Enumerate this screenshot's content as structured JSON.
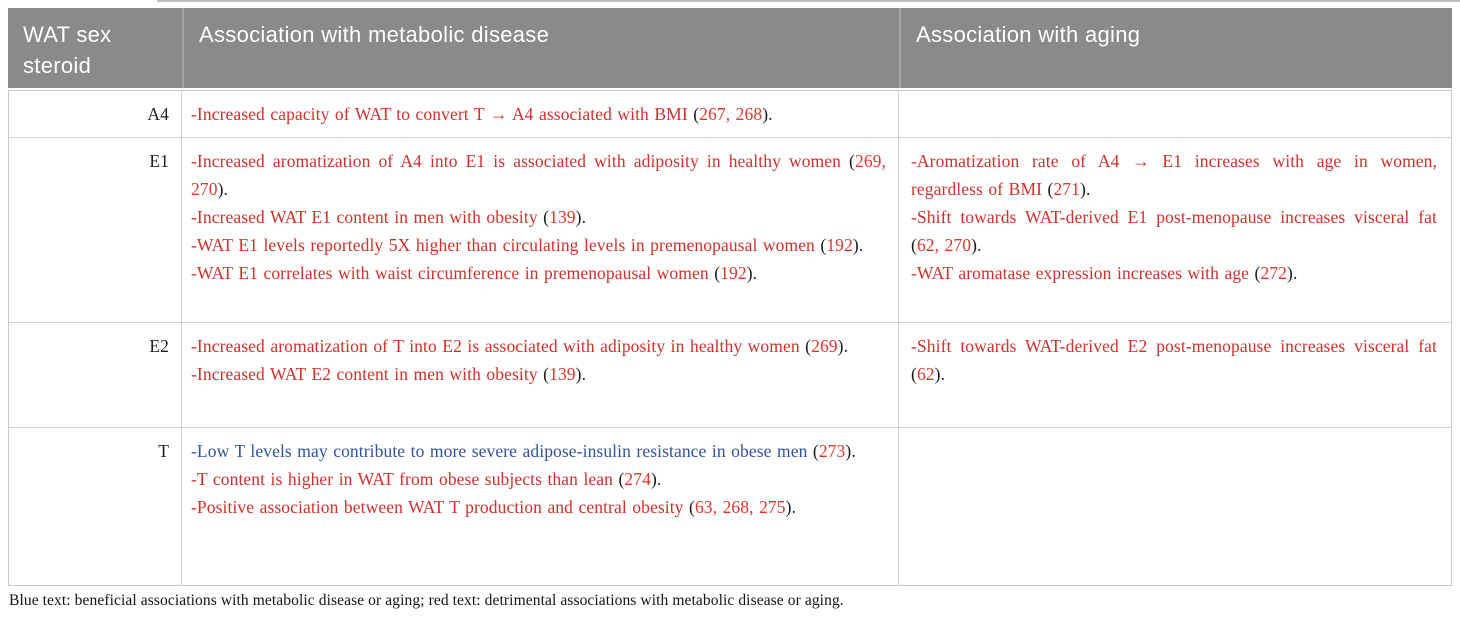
{
  "header": {
    "columns": [
      "WAT sex steroid",
      "Association with metabolic disease",
      "Association with aging"
    ]
  },
  "colors": {
    "red": "#d3302c",
    "blue": "#33519e",
    "ref": "#e0352b",
    "dark": "#1a1a1a",
    "header_bg": "#8a8a8a",
    "header_text": "#ffffff"
  },
  "rows": [
    {
      "label": "A4",
      "metabolic": [
        [
          [
            "-Increased capacity of WAT to convert T → A4 associated with BMI ",
            "red"
          ],
          [
            "(",
            "dark"
          ],
          [
            "267, 268",
            "ref"
          ],
          [
            ").",
            "dark"
          ]
        ]
      ],
      "aging": []
    },
    {
      "label": "E1",
      "metabolic": [
        [
          [
            "-Increased aromatization of A4 into E1 is associated with adiposity in healthy women ",
            "red"
          ],
          [
            "(",
            "dark"
          ],
          [
            "269, 270",
            "ref"
          ],
          [
            ").",
            "dark"
          ]
        ],
        [
          [
            "-Increased WAT E1 content in men with obesity ",
            "red"
          ],
          [
            "(",
            "dark"
          ],
          [
            "139",
            "ref"
          ],
          [
            ").",
            "dark"
          ]
        ],
        [
          [
            "-WAT E1 levels reportedly 5X higher than circulating levels in premenopausal women ",
            "red"
          ],
          [
            "(",
            "dark"
          ],
          [
            "192",
            "ref"
          ],
          [
            ").",
            "dark"
          ]
        ],
        [
          [
            "-WAT E1 correlates with waist circumference in premenopausal women ",
            "red"
          ],
          [
            "(",
            "dark"
          ],
          [
            "192",
            "ref"
          ],
          [
            ").",
            "dark"
          ]
        ]
      ],
      "aging": [
        [
          [
            "-Aromatization rate of A4 → E1 increases with age in women, regardless of BMI ",
            "red"
          ],
          [
            "(",
            "dark"
          ],
          [
            "271",
            "ref"
          ],
          [
            ").",
            "dark"
          ]
        ],
        [
          [
            "-Shift towards WAT-derived E1 post-menopause increases visceral fat ",
            "red"
          ],
          [
            "(",
            "dark"
          ],
          [
            "62, 270",
            "ref"
          ],
          [
            ").",
            "dark"
          ]
        ],
        [
          [
            "-WAT aromatase expression increases with age ",
            "red"
          ],
          [
            "(",
            "dark"
          ],
          [
            "272",
            "ref"
          ],
          [
            ").",
            "dark"
          ]
        ]
      ]
    },
    {
      "label": "E2",
      "metabolic": [
        [
          [
            "-Increased aromatization of T into E2 is associated with adiposity in healthy women ",
            "red"
          ],
          [
            "(",
            "dark"
          ],
          [
            "269",
            "ref"
          ],
          [
            ").",
            "dark"
          ]
        ],
        [
          [
            "-Increased WAT E2 content in men with obesity ",
            "red"
          ],
          [
            "(",
            "dark"
          ],
          [
            "139",
            "ref"
          ],
          [
            ").",
            "dark"
          ]
        ]
      ],
      "aging": [
        [
          [
            "-Shift towards WAT-derived E2 post-menopause increases visceral fat ",
            "red"
          ],
          [
            "(",
            "dark"
          ],
          [
            "62",
            "ref"
          ],
          [
            ").",
            "dark"
          ]
        ]
      ]
    },
    {
      "label": "T",
      "metabolic": [
        [
          [
            "-Low T levels may contribute to more severe adipose-insulin resistance in obese men ",
            "blue"
          ],
          [
            "(",
            "dark"
          ],
          [
            "273",
            "ref"
          ],
          [
            ").",
            "dark"
          ]
        ],
        [
          [
            "-T content is higher in WAT from obese subjects than lean ",
            "red"
          ],
          [
            "(",
            "dark"
          ],
          [
            "274",
            "ref"
          ],
          [
            ").",
            "dark"
          ]
        ],
        [
          [
            "-Positive association between WAT T production and central obesity ",
            "red"
          ],
          [
            "(",
            "dark"
          ],
          [
            "63, 268, 275",
            "ref"
          ],
          [
            ").",
            "dark"
          ]
        ]
      ],
      "aging": []
    }
  ],
  "footnote": "Blue text: beneficial associations with metabolic disease or aging; red text: detrimental associations with metabolic disease or aging."
}
